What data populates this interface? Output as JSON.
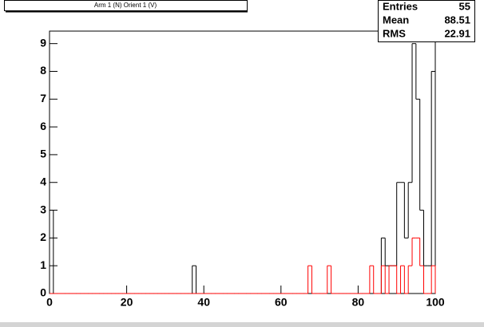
{
  "chart_data": {
    "type": "histogram",
    "title": "Arm 1 (N) Orient 1 (V)",
    "bins": [
      0,
      1,
      2,
      3,
      4,
      5,
      6,
      7,
      8,
      9,
      10,
      11,
      12,
      13,
      14,
      15,
      16,
      17,
      18,
      19,
      20,
      21,
      22,
      23,
      24,
      25,
      26,
      27,
      28,
      29,
      30,
      31,
      32,
      33,
      34,
      35,
      36,
      37,
      38,
      39,
      40,
      41,
      42,
      43,
      44,
      45,
      46,
      47,
      48,
      49,
      50,
      51,
      52,
      53,
      54,
      55,
      56,
      57,
      58,
      59,
      60,
      61,
      62,
      63,
      64,
      65,
      66,
      67,
      68,
      69,
      70,
      71,
      72,
      73,
      74,
      75,
      76,
      77,
      78,
      79,
      80,
      81,
      82,
      83,
      84,
      85,
      86,
      87,
      88,
      89,
      90,
      91,
      92,
      93,
      94,
      95,
      96,
      97,
      98,
      99,
      100
    ],
    "series": [
      {
        "color": "#000000",
        "values": [
          3,
          0,
          0,
          0,
          0,
          0,
          0,
          0,
          0,
          0,
          0,
          0,
          0,
          0,
          0,
          0,
          0,
          0,
          0,
          0,
          0,
          0,
          0,
          0,
          0,
          0,
          0,
          0,
          0,
          0,
          0,
          0,
          0,
          0,
          0,
          0,
          0,
          1,
          0,
          0,
          0,
          0,
          0,
          0,
          0,
          0,
          0,
          0,
          0,
          0,
          0,
          0,
          0,
          0,
          0,
          0,
          0,
          0,
          0,
          0,
          0,
          0,
          0,
          0,
          0,
          0,
          0,
          0,
          0,
          0,
          0,
          0,
          0,
          0,
          0,
          0,
          0,
          0,
          0,
          0,
          0,
          0,
          0,
          0,
          0,
          0,
          2,
          1,
          1,
          1,
          4,
          4,
          2,
          4,
          9,
          7,
          3,
          1,
          1,
          8
        ]
      },
      {
        "color": "#ff0000",
        "values": [
          0,
          0,
          0,
          0,
          0,
          0,
          0,
          0,
          0,
          0,
          0,
          0,
          0,
          0,
          0,
          0,
          0,
          0,
          0,
          0,
          0,
          0,
          0,
          0,
          0,
          0,
          0,
          0,
          0,
          0,
          0,
          0,
          0,
          0,
          0,
          0,
          0,
          0,
          0,
          0,
          0,
          0,
          0,
          0,
          0,
          0,
          0,
          0,
          0,
          0,
          0,
          0,
          0,
          0,
          0,
          0,
          0,
          0,
          0,
          0,
          0,
          0,
          0,
          0,
          0,
          0,
          0,
          1,
          0,
          0,
          0,
          0,
          1,
          0,
          0,
          0,
          0,
          0,
          0,
          0,
          0,
          0,
          0,
          1,
          0,
          0,
          1,
          0,
          1,
          1,
          0,
          1,
          0,
          1,
          2,
          2,
          1,
          0,
          0,
          1
        ]
      }
    ],
    "xlim": [
      0,
      100
    ],
    "xticks": [
      0,
      20,
      40,
      60,
      80,
      100
    ],
    "ylim": [
      0,
      9.45
    ],
    "yticks": [
      0,
      1,
      2,
      3,
      4,
      5,
      6,
      7,
      8,
      9
    ],
    "stats": [
      {
        "label": "Entries",
        "value": 55
      },
      {
        "label": "Mean",
        "value": 88.51
      },
      {
        "label": "RMS",
        "value": 22.91
      }
    ]
  }
}
